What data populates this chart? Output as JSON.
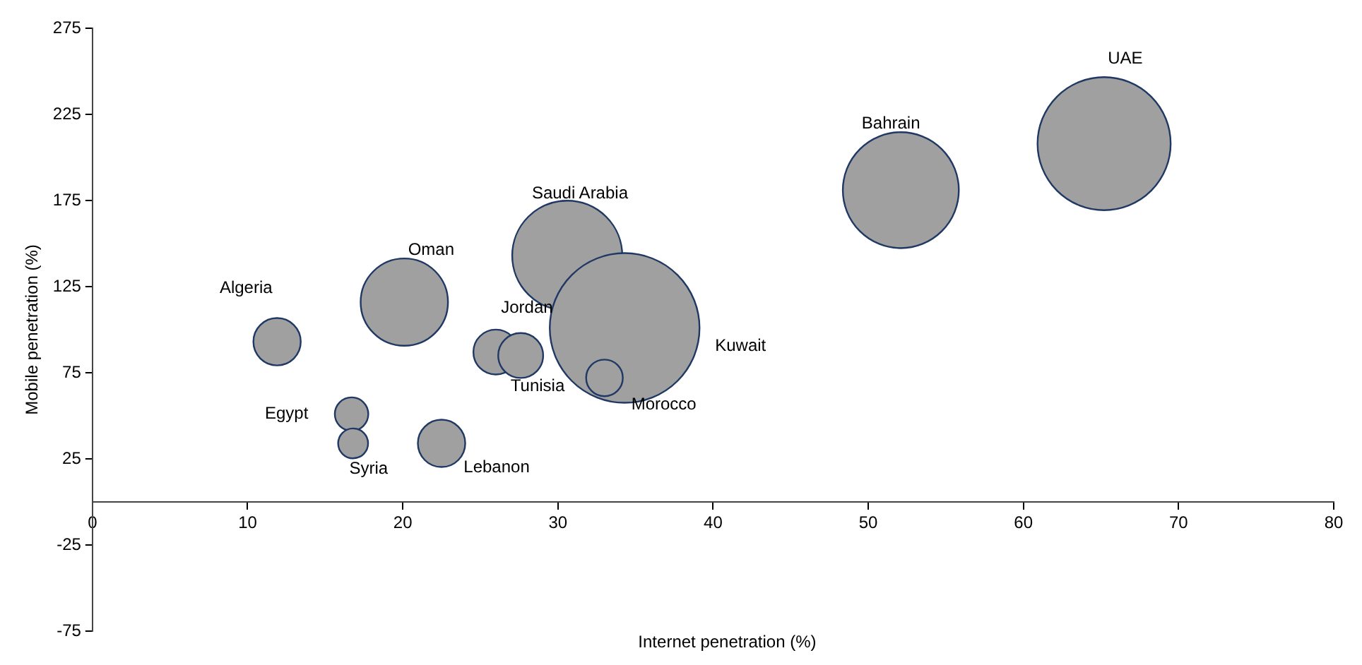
{
  "chart_data": {
    "type": "bubble",
    "xlabel": "Internet penetration (%)",
    "ylabel": "Mobile penetration (%)",
    "x": [
      11.9,
      20.1,
      16.7,
      16.8,
      22.5,
      26.0,
      27.6,
      30.6,
      34.3,
      33.0,
      52.1,
      65.2
    ],
    "values": [
      93,
      116,
      51,
      34,
      34,
      87,
      85,
      143,
      101,
      72,
      181,
      208
    ],
    "sizes": [
      0.1,
      0.34,
      0.05,
      0.04,
      0.1,
      0.09,
      0.09,
      0.54,
      1,
      0.06,
      0.6,
      0.79
    ],
    "color": "#a0a0a0",
    "xlim": [
      0,
      80
    ],
    "xticks": [
      0,
      10,
      20,
      30,
      40,
      50,
      60,
      70,
      80
    ],
    "ylim": [
      -75,
      275
    ],
    "yticks": [
      -75,
      -25,
      25,
      75,
      125,
      175,
      225,
      275
    ],
    "grid": false,
    "legend": false,
    "annotations": [
      "Algeria",
      "Oman",
      "Egypt",
      "Syria",
      "Lebanon",
      "Jordan",
      "Tunisia",
      "Saudi Arabia",
      "Kuwait",
      "Morocco",
      "Bahrain",
      "UAE"
    ]
  }
}
